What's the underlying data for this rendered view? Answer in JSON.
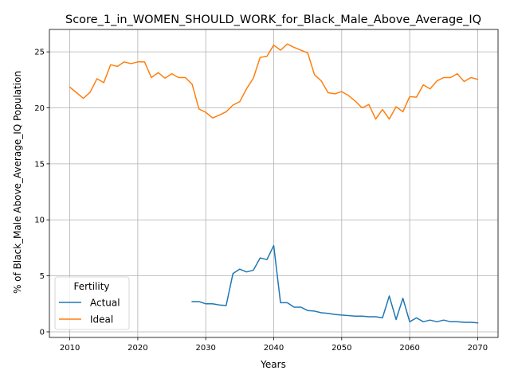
{
  "chart_data": {
    "type": "line",
    "title": "Score_1_in_WOMEN_SHOULD_WORK_for_Black_Male_Above_Average_IQ",
    "xlabel": "Years",
    "ylabel": "% of Black_Male Above_Average_IQ Population",
    "xlim": [
      2007,
      2073
    ],
    "ylim": [
      -0.5,
      27
    ],
    "xticks": [
      2010,
      2020,
      2030,
      2040,
      2050,
      2060,
      2070
    ],
    "yticks": [
      0,
      5,
      10,
      15,
      20,
      25
    ],
    "grid": true,
    "legend": {
      "title": "Fertility",
      "position": "lower-left"
    },
    "series": [
      {
        "name": "Actual",
        "color": "#1f77b4",
        "x": [
          2028,
          2029,
          2030,
          2031,
          2032,
          2033,
          2034,
          2035,
          2036,
          2037,
          2038,
          2039,
          2040,
          2041,
          2042,
          2043,
          2044,
          2045,
          2046,
          2047,
          2048,
          2049,
          2050,
          2051,
          2052,
          2053,
          2054,
          2055,
          2056,
          2057,
          2058,
          2059,
          2060,
          2061,
          2062,
          2063,
          2064,
          2065,
          2066,
          2067,
          2068,
          2069,
          2070
        ],
        "values": [
          2.7,
          2.7,
          2.5,
          2.5,
          2.4,
          2.35,
          5.2,
          5.6,
          5.35,
          5.5,
          6.6,
          6.45,
          7.7,
          2.6,
          2.6,
          2.2,
          2.2,
          1.9,
          1.85,
          1.7,
          1.65,
          1.55,
          1.5,
          1.45,
          1.4,
          1.4,
          1.35,
          1.35,
          1.25,
          3.2,
          1.1,
          3.0,
          0.9,
          1.25,
          0.9,
          1.05,
          0.9,
          1.05,
          0.9,
          0.9,
          0.85,
          0.85,
          0.8
        ]
      },
      {
        "name": "Ideal",
        "color": "#ff7f0e",
        "x": [
          2010,
          2011,
          2012,
          2013,
          2014,
          2015,
          2016,
          2017,
          2018,
          2019,
          2020,
          2021,
          2022,
          2023,
          2024,
          2025,
          2026,
          2027,
          2028,
          2029,
          2030,
          2031,
          2032,
          2033,
          2034,
          2035,
          2036,
          2037,
          2038,
          2039,
          2040,
          2041,
          2042,
          2043,
          2044,
          2045,
          2046,
          2047,
          2048,
          2049,
          2050,
          2051,
          2052,
          2053,
          2054,
          2055,
          2056,
          2057,
          2058,
          2059,
          2060,
          2061,
          2062,
          2063,
          2064,
          2065,
          2066,
          2067,
          2068,
          2069,
          2070
        ],
        "values": [
          21.85,
          21.35,
          20.85,
          21.4,
          22.6,
          22.25,
          23.85,
          23.7,
          24.1,
          23.95,
          24.1,
          24.1,
          22.7,
          23.15,
          22.65,
          23.05,
          22.7,
          22.7,
          22.1,
          19.9,
          19.6,
          19.1,
          19.35,
          19.65,
          20.25,
          20.55,
          21.7,
          22.65,
          24.5,
          24.6,
          25.6,
          25.15,
          25.7,
          25.4,
          25.15,
          24.9,
          22.95,
          22.4,
          21.35,
          21.25,
          21.45,
          21.1,
          20.6,
          20.0,
          20.3,
          19.0,
          19.85,
          19.0,
          20.1,
          19.65,
          21.0,
          20.95,
          22.05,
          21.7,
          22.4,
          22.7,
          22.7,
          23.05,
          22.35,
          22.7,
          22.55
        ]
      }
    ]
  }
}
